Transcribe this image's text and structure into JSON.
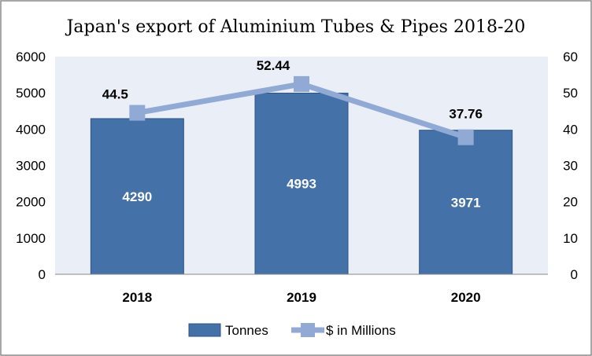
{
  "chart_data": {
    "type": "bar",
    "title": "Japan's export of Aluminium Tubes & Pipes 2018-20",
    "categories": [
      "2018",
      "2019",
      "2020"
    ],
    "series": [
      {
        "name": "Tonnes",
        "type": "bar",
        "axis": "left",
        "values": [
          4290,
          4993,
          3971
        ],
        "color": "#4471A8",
        "labels": [
          "4290",
          "4993",
          "3971"
        ]
      },
      {
        "name": "$ in Millions",
        "type": "line",
        "axis": "right",
        "values": [
          44.5,
          52.44,
          37.76
        ],
        "color": "#91A9D5",
        "labels": [
          "44.5",
          "52.44",
          "37.76"
        ]
      }
    ],
    "ylim_left": [
      0,
      6000
    ],
    "yticks_left": [
      "0",
      "1000",
      "2000",
      "3000",
      "4000",
      "5000",
      "6000"
    ],
    "ylim_right": [
      0,
      60
    ],
    "yticks_right": [
      "0",
      "10",
      "20",
      "30",
      "40",
      "50",
      "60"
    ],
    "grid": false,
    "legend_position": "bottom",
    "plot_background": "#EAEEF6"
  }
}
